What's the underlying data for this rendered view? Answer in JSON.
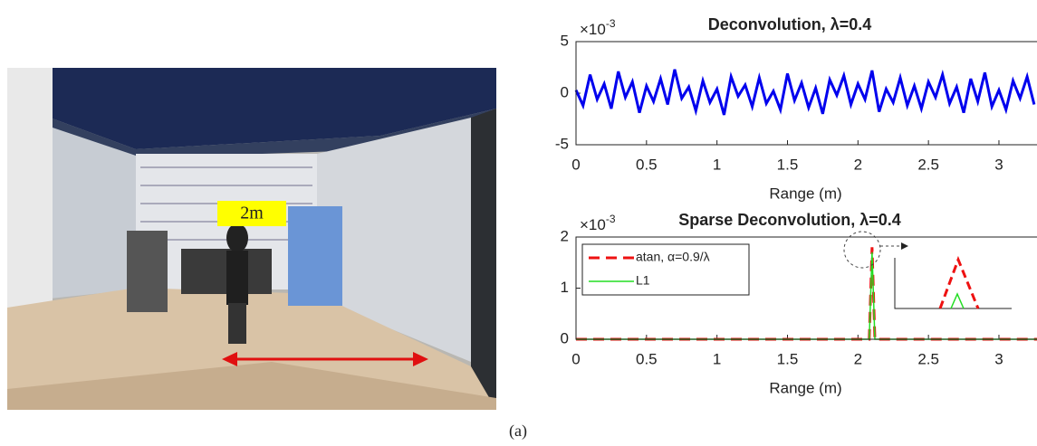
{
  "figure": {
    "photo_label": "2m",
    "caption": "(a)"
  },
  "chart_data": [
    {
      "type": "line",
      "title": "Deconvolution, λ=0.4",
      "xlabel": "Range (m)",
      "y_multiplier": {
        "base": "×10",
        "exponent": "-3"
      },
      "xlim": [
        0,
        3.27
      ],
      "ylim": [
        -5,
        5
      ],
      "xticks": [
        0,
        0.5,
        1,
        1.5,
        2,
        2.5,
        3
      ],
      "yticks": [
        -5,
        0,
        5
      ],
      "x": [
        0,
        0.05,
        0.1,
        0.15,
        0.2,
        0.25,
        0.3,
        0.35,
        0.4,
        0.45,
        0.5,
        0.55,
        0.6,
        0.65,
        0.7,
        0.75,
        0.8,
        0.85,
        0.9,
        0.95,
        1,
        1.05,
        1.1,
        1.15,
        1.2,
        1.25,
        1.3,
        1.35,
        1.4,
        1.45,
        1.5,
        1.55,
        1.6,
        1.65,
        1.7,
        1.75,
        1.8,
        1.85,
        1.9,
        1.95,
        2,
        2.05,
        2.1,
        2.15,
        2.2,
        2.25,
        2.3,
        2.35,
        2.4,
        2.45,
        2.5,
        2.55,
        2.6,
        2.65,
        2.7,
        2.75,
        2.8,
        2.85,
        2.9,
        2.95,
        3,
        3.05,
        3.1,
        3.15,
        3.2,
        3.25
      ],
      "series": [
        {
          "color": "#0000ee",
          "dash": false,
          "width": 3,
          "values": [
            0.3,
            -1.2,
            1.8,
            -0.6,
            0.9,
            -1.5,
            2.1,
            -0.4,
            1.1,
            -1.9,
            0.7,
            -0.8,
            1.4,
            -1.1,
            2.3,
            -0.5,
            0.6,
            -1.7,
            1.2,
            -0.9,
            0.4,
            -2.1,
            1.6,
            -0.3,
            0.8,
            -1.3,
            1.5,
            -1.0,
            0.2,
            -1.6,
            1.9,
            -0.7,
            1.0,
            -1.4,
            0.5,
            -2.0,
            1.3,
            -0.2,
            1.7,
            -1.1,
            0.9,
            -0.6,
            2.2,
            -1.8,
            0.4,
            -0.9,
            1.5,
            -1.2,
            0.7,
            -1.5,
            1.1,
            -0.4,
            1.8,
            -1.0,
            0.6,
            -1.9,
            1.4,
            -0.8,
            2.0,
            -1.3,
            0.3,
            -1.6,
            1.2,
            -0.5,
            1.6,
            -1.1
          ]
        }
      ]
    },
    {
      "type": "line",
      "title": "Sparse Deconvolution, λ=0.4",
      "xlabel": "Range (m)",
      "y_multiplier": {
        "base": "×10",
        "exponent": "-3"
      },
      "xlim": [
        0,
        3.27
      ],
      "ylim": [
        0,
        2
      ],
      "xticks": [
        0,
        0.5,
        1,
        1.5,
        2,
        2.5,
        3
      ],
      "yticks": [
        0,
        1,
        2
      ],
      "x": [
        0,
        2.08,
        2.1,
        2.12,
        3.27
      ],
      "series": [
        {
          "name": "atan, α=0.9/λ",
          "color": "#ee1111",
          "dash": true,
          "width": 3,
          "values": [
            0,
            0,
            1.8,
            0,
            0
          ]
        },
        {
          "name": "L1",
          "color": "#22dd22",
          "dash": false,
          "width": 1.5,
          "values": [
            0,
            0,
            1.7,
            0,
            0
          ]
        }
      ]
    }
  ]
}
